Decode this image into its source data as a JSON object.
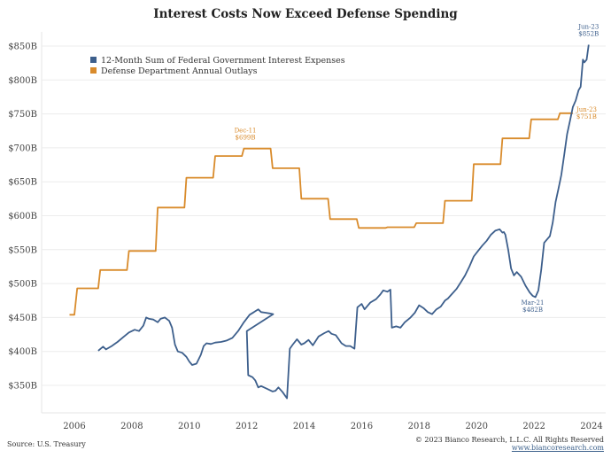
{
  "chart_data": {
    "type": "line",
    "title": "Interest Costs Now Exceed Defense Spending",
    "xlabel": "",
    "ylabel": "",
    "xlim": [
      2005.5,
      2024
    ],
    "ylim": [
      325,
      870
    ],
    "x_ticks": [
      2006,
      2008,
      2010,
      2012,
      2014,
      2016,
      2018,
      2020,
      2022,
      2024
    ],
    "x_tick_labels": [
      "2006",
      "2008",
      "2010",
      "2012",
      "2014",
      "2016",
      "2018",
      "2020",
      "2022",
      "2024"
    ],
    "y_ticks": [
      350,
      400,
      450,
      500,
      550,
      600,
      650,
      700,
      750,
      800,
      850
    ],
    "y_tick_labels": [
      "$350B",
      "$400B",
      "$450B",
      "$500B",
      "$550B",
      "$600B",
      "$650B",
      "$700B",
      "$750B",
      "$800B",
      "$850B"
    ],
    "grid": true,
    "legend_position": "top-left",
    "series": [
      {
        "name": "12-Month Sum of Federal Government Interest Expenses",
        "color": "#3d5f8c",
        "points": [
          [
            2006.83,
            401
          ],
          [
            2007.0,
            407
          ],
          [
            2007.1,
            403
          ],
          [
            2007.3,
            408
          ],
          [
            2007.5,
            414
          ],
          [
            2007.7,
            421
          ],
          [
            2007.9,
            428
          ],
          [
            2008.1,
            432
          ],
          [
            2008.25,
            430
          ],
          [
            2008.4,
            438
          ],
          [
            2008.5,
            450
          ],
          [
            2008.6,
            448
          ],
          [
            2008.75,
            447
          ],
          [
            2008.9,
            443
          ],
          [
            2009.0,
            448
          ],
          [
            2009.15,
            450
          ],
          [
            2009.3,
            445
          ],
          [
            2009.4,
            435
          ],
          [
            2009.5,
            410
          ],
          [
            2009.6,
            400
          ],
          [
            2009.75,
            398
          ],
          [
            2009.9,
            392
          ],
          [
            2010.0,
            385
          ],
          [
            2010.1,
            380
          ],
          [
            2010.25,
            382
          ],
          [
            2010.4,
            395
          ],
          [
            2010.5,
            408
          ],
          [
            2010.6,
            412
          ],
          [
            2010.75,
            411
          ],
          [
            2010.9,
            413
          ],
          [
            2011.1,
            414
          ],
          [
            2011.3,
            416
          ],
          [
            2011.5,
            420
          ],
          [
            2011.7,
            430
          ],
          [
            2011.9,
            443
          ],
          [
            2012.1,
            454
          ],
          [
            2012.25,
            458
          ],
          [
            2012.4,
            462
          ],
          [
            2012.5,
            458
          ],
          [
            2012.65,
            457
          ],
          [
            2012.8,
            456
          ],
          [
            2012.92,
            455
          ],
          [
            2013.0,
            430
          ],
          [
            2013.05,
            365
          ],
          [
            2013.2,
            362
          ],
          [
            2013.3,
            357
          ],
          [
            2013.4,
            347
          ],
          [
            2013.5,
            349
          ],
          [
            2013.7,
            345
          ],
          [
            2013.9,
            341
          ],
          [
            2014.0,
            342
          ],
          [
            2014.1,
            347
          ],
          [
            2014.25,
            340
          ],
          [
            2014.4,
            331
          ],
          [
            2014.5,
            404
          ],
          [
            2014.6,
            410
          ],
          [
            2014.75,
            418
          ],
          [
            2014.9,
            410
          ],
          [
            2015.0,
            412
          ],
          [
            2015.15,
            417
          ],
          [
            2015.3,
            409
          ],
          [
            2015.5,
            422
          ],
          [
            2015.7,
            427
          ],
          [
            2015.85,
            430
          ],
          [
            2015.95,
            426
          ],
          [
            2016.1,
            424
          ],
          [
            2016.3,
            412
          ],
          [
            2016.45,
            408
          ],
          [
            2016.6,
            408
          ],
          [
            2016.75,
            404
          ],
          [
            2016.85,
            465
          ],
          [
            2017.0,
            470
          ],
          [
            2017.1,
            462
          ],
          [
            2017.3,
            472
          ],
          [
            2017.5,
            477
          ],
          [
            2017.65,
            484
          ],
          [
            2017.75,
            490
          ],
          [
            2017.9,
            488
          ],
          [
            2018.0,
            491
          ],
          [
            2018.05,
            435
          ],
          [
            2018.2,
            437
          ],
          [
            2018.35,
            435
          ],
          [
            2018.5,
            443
          ],
          [
            2018.7,
            450
          ],
          [
            2018.85,
            457
          ],
          [
            2019.0,
            468
          ],
          [
            2019.15,
            464
          ],
          [
            2019.3,
            458
          ],
          [
            2019.45,
            455
          ],
          [
            2019.6,
            462
          ],
          [
            2019.75,
            466
          ],
          [
            2019.9,
            475
          ],
          [
            2020.0,
            478
          ],
          [
            2020.15,
            485
          ],
          [
            2020.3,
            492
          ],
          [
            2020.45,
            502
          ],
          [
            2020.6,
            512
          ],
          [
            2020.75,
            525
          ],
          [
            2020.9,
            540
          ],
          [
            2021.05,
            548
          ],
          [
            2021.2,
            556
          ],
          [
            2021.35,
            563
          ],
          [
            2021.5,
            572
          ],
          [
            2021.65,
            578
          ],
          [
            2021.8,
            580
          ],
          [
            2021.9,
            575
          ],
          [
            2021.95,
            576
          ],
          [
            2022.0,
            572
          ],
          [
            2022.1,
            550
          ],
          [
            2022.2,
            522
          ],
          [
            2022.3,
            512
          ],
          [
            2022.4,
            517
          ],
          [
            2022.55,
            510
          ],
          [
            2022.7,
            497
          ],
          [
            2022.85,
            487
          ],
          [
            2022.95,
            482
          ],
          [
            2023.05,
            480
          ],
          [
            2023.15,
            490
          ],
          [
            2023.25,
            520
          ],
          [
            2023.35,
            560
          ],
          [
            2023.45,
            565
          ],
          [
            2023.55,
            570
          ],
          [
            2023.65,
            590
          ],
          [
            2023.75,
            620
          ],
          [
            2023.85,
            640
          ],
          [
            2023.95,
            660
          ],
          [
            2024.05,
            690
          ],
          [
            2024.15,
            720
          ],
          [
            2024.25,
            740
          ],
          [
            2024.35,
            760
          ],
          [
            2024.45,
            770
          ],
          [
            2024.55,
            785
          ],
          [
            2024.62,
            790
          ],
          [
            2024.7,
            830
          ],
          [
            2024.75,
            826
          ],
          [
            2024.83,
            830
          ],
          [
            2024.9,
            852
          ]
        ]
      },
      {
        "name": "Defense Department Annual Outlays",
        "color": "#d98b2b",
        "points": [
          [
            2005.83,
            454
          ],
          [
            2006.0,
            454
          ],
          [
            2006.1,
            493
          ],
          [
            2006.83,
            493
          ],
          [
            2006.9,
            520
          ],
          [
            2007.83,
            520
          ],
          [
            2007.9,
            548
          ],
          [
            2008.83,
            548
          ],
          [
            2008.9,
            612
          ],
          [
            2009.83,
            612
          ],
          [
            2009.9,
            656
          ],
          [
            2010.83,
            656
          ],
          [
            2010.9,
            688
          ],
          [
            2011.83,
            688
          ],
          [
            2011.9,
            699
          ],
          [
            2012.83,
            699
          ],
          [
            2012.9,
            670
          ],
          [
            2013.83,
            670
          ],
          [
            2013.9,
            625
          ],
          [
            2014.83,
            625
          ],
          [
            2014.9,
            595
          ],
          [
            2015.83,
            595
          ],
          [
            2015.9,
            582
          ],
          [
            2016.83,
            582
          ],
          [
            2016.9,
            583
          ],
          [
            2017.83,
            583
          ],
          [
            2017.9,
            589
          ],
          [
            2018.83,
            589
          ],
          [
            2018.9,
            622
          ],
          [
            2019.83,
            622
          ],
          [
            2019.9,
            676
          ],
          [
            2020.83,
            676
          ],
          [
            2020.9,
            714
          ],
          [
            2021.83,
            714
          ],
          [
            2021.9,
            742
          ],
          [
            2022.83,
            742
          ],
          [
            2022.9,
            751
          ],
          [
            2023.35,
            751
          ]
        ]
      }
    ],
    "annotations": [
      {
        "series": 1,
        "label_line1": "Dec-11",
        "label_line2": "$699B",
        "x": 2011.95,
        "y": 699
      },
      {
        "series": 0,
        "label_line1": "Mar-21",
        "label_line2": "$482B",
        "x": 2022.95,
        "y": 482
      },
      {
        "series": 0,
        "label_line1": "Jun-23",
        "label_line2": "$852B",
        "x": 2024.9,
        "y": 852
      },
      {
        "series": 1,
        "label_line1": "Jun-23",
        "label_line2": "$751B",
        "x": 2023.35,
        "y": 751
      }
    ]
  },
  "footer": {
    "source": "Source: U.S. Treasury",
    "copyright": "© 2023 Bianco Research, L.L.C. All Rights Reserved",
    "website": "www.biancoresearch.com"
  }
}
